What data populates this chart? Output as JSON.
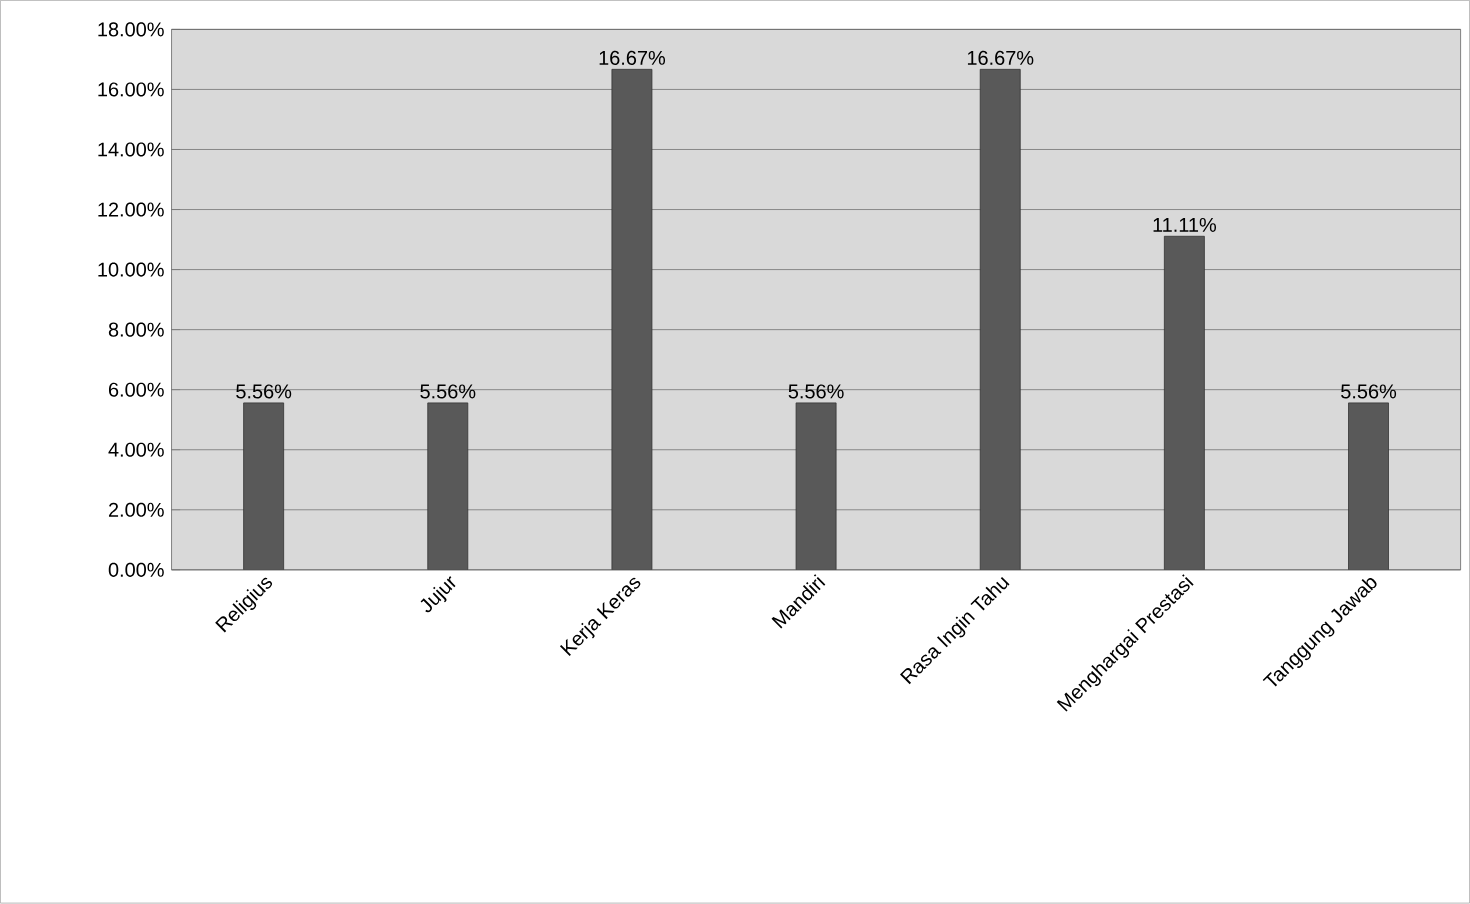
{
  "chart_data": {
    "type": "bar",
    "categories": [
      "Religius",
      "Jujur",
      "Kerja Keras",
      "Mandiri",
      "Rasa Ingin Tahu",
      "Menghargai Prestasi",
      "Tanggung Jawab"
    ],
    "values": [
      5.56,
      5.56,
      16.67,
      5.56,
      16.67,
      11.11,
      5.56
    ],
    "value_labels": [
      "5.56%",
      "5.56%",
      "16.67%",
      "5.56%",
      "16.67%",
      "11.11%",
      "5.56%"
    ],
    "color": "#595959",
    "ylim": [
      0,
      18
    ],
    "yticks": [
      {
        "value": 0,
        "label": "0.00%"
      },
      {
        "value": 2,
        "label": "2.00%"
      },
      {
        "value": 4,
        "label": "4.00%"
      },
      {
        "value": 6,
        "label": "6.00%"
      },
      {
        "value": 8,
        "label": "8.00%"
      },
      {
        "value": 10,
        "label": "10.00%"
      },
      {
        "value": 12,
        "label": "12.00%"
      },
      {
        "value": 14,
        "label": "14.00%"
      },
      {
        "value": 16,
        "label": "16.00%"
      },
      {
        "value": 18,
        "label": "18.00%"
      }
    ],
    "grid": "y"
  }
}
